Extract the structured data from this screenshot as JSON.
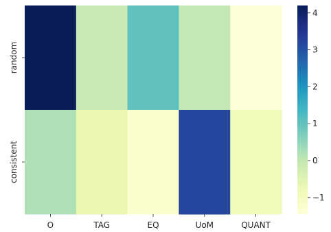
{
  "chart_data": {
    "type": "heatmap",
    "title": "",
    "xlabel": "",
    "ylabel": "",
    "x_categories": [
      "O",
      "TAG",
      "EQ",
      "UoM",
      "QUANT"
    ],
    "y_categories": [
      "random",
      "consistent"
    ],
    "values": [
      [
        4.2,
        -0.1,
        1.0,
        0.0,
        -1.4
      ],
      [
        0.2,
        -0.7,
        -1.2,
        3.2,
        -0.9
      ]
    ],
    "colormap": "YlGnBu",
    "colorbar": {
      "vmin": -1.45,
      "vmax": 4.2,
      "ticks": [
        -1,
        0,
        1,
        2,
        3,
        4
      ],
      "tick_labels": [
        "−1",
        "0",
        "1",
        "2",
        "3",
        "4"
      ]
    }
  }
}
